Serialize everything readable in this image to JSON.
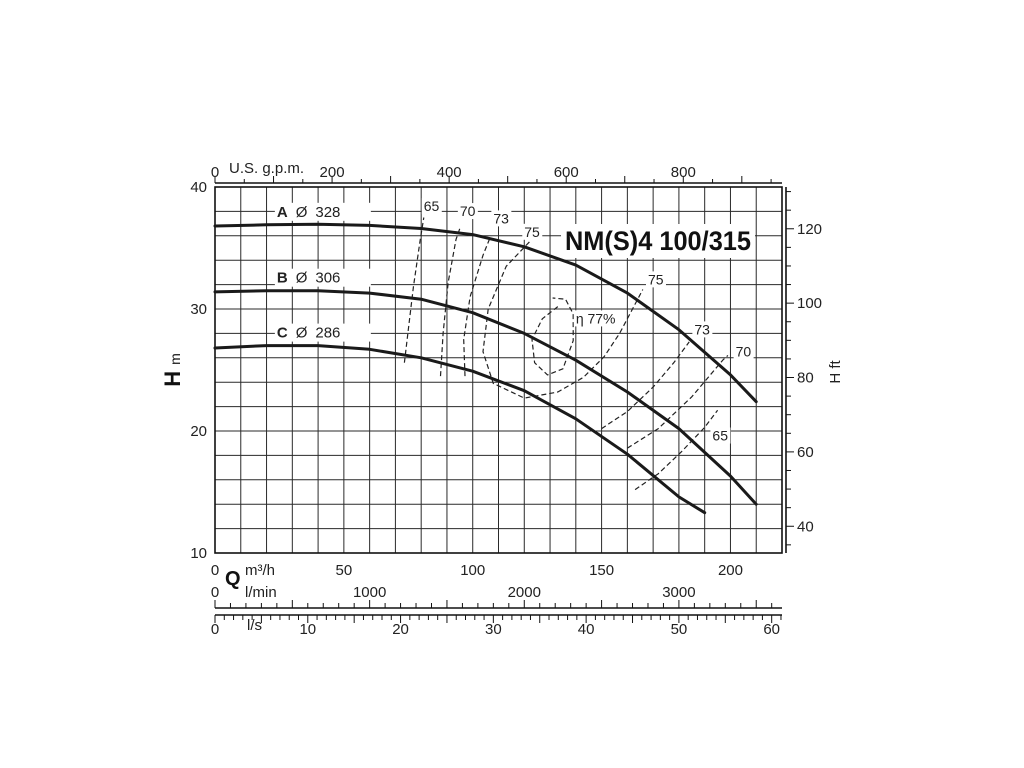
{
  "chart_data": {
    "type": "line",
    "title": "NM(S)4 100/315",
    "x_axis": {
      "symbol": "Q",
      "scales": [
        {
          "unit": "m³/h",
          "range": [
            0,
            220
          ],
          "ticks": [
            "0",
            "50",
            "100",
            "150",
            "200"
          ],
          "tick_values": [
            0,
            50,
            100,
            150,
            200
          ]
        },
        {
          "unit": "l/min",
          "range": [
            0,
            3666.7
          ],
          "ticks": [
            "0",
            "1000",
            "2000",
            "3000"
          ],
          "tick_values": [
            0,
            1000,
            2000,
            3000
          ]
        },
        {
          "unit": "l/s",
          "range": [
            0,
            61.1
          ],
          "ticks": [
            "0",
            "10",
            "20",
            "30",
            "40",
            "50",
            "60"
          ],
          "tick_values": [
            0,
            10,
            20,
            30,
            40,
            50,
            60
          ]
        }
      ]
    },
    "x_axis_top": {
      "unit": "U.S. g.p.m.",
      "range": [
        0,
        968.6
      ],
      "ticks": [
        "0",
        "200",
        "400",
        "600",
        "800"
      ],
      "tick_values": [
        0,
        200,
        400,
        600,
        800
      ]
    },
    "y_axis_left": {
      "symbol": "H",
      "unit": "m",
      "range": [
        10,
        40
      ],
      "ticks": [
        "10",
        "20",
        "30",
        "40"
      ],
      "tick_values": [
        10,
        20,
        30,
        40
      ]
    },
    "y_axis_right": {
      "symbol": "H",
      "unit": "ft",
      "range": [
        32.8,
        131.2
      ],
      "ticks": [
        "40",
        "60",
        "80",
        "100",
        "120"
      ],
      "tick_values": [
        40,
        60,
        80,
        100,
        120
      ]
    },
    "grid": true,
    "series": [
      {
        "name": "A",
        "diameter_label": "Ø",
        "diameter": "328",
        "points": [
          [
            0,
            36.8
          ],
          [
            20,
            36.9
          ],
          [
            40,
            36.95
          ],
          [
            60,
            36.85
          ],
          [
            80,
            36.6
          ],
          [
            100,
            36.1
          ],
          [
            120,
            35.1
          ],
          [
            140,
            33.6
          ],
          [
            160,
            31.3
          ],
          [
            180,
            28.3
          ],
          [
            200,
            24.6
          ],
          [
            210,
            22.4
          ]
        ]
      },
      {
        "name": "B",
        "diameter_label": "Ø",
        "diameter": "306",
        "points": [
          [
            0,
            31.4
          ],
          [
            20,
            31.5
          ],
          [
            40,
            31.5
          ],
          [
            60,
            31.3
          ],
          [
            80,
            30.8
          ],
          [
            100,
            29.7
          ],
          [
            120,
            28.0
          ],
          [
            140,
            25.8
          ],
          [
            160,
            23.2
          ],
          [
            180,
            20.2
          ],
          [
            200,
            16.3
          ],
          [
            210,
            14.0
          ]
        ]
      },
      {
        "name": "C",
        "diameter_label": "Ø",
        "diameter": "286",
        "points": [
          [
            0,
            26.8
          ],
          [
            20,
            27.0
          ],
          [
            40,
            27.0
          ],
          [
            60,
            26.7
          ],
          [
            80,
            26.0
          ],
          [
            100,
            24.9
          ],
          [
            120,
            23.3
          ],
          [
            140,
            21.0
          ],
          [
            160,
            18.1
          ],
          [
            180,
            14.6
          ],
          [
            190,
            13.3
          ]
        ]
      }
    ],
    "efficiency_contours": [
      {
        "label": "65",
        "segments": [
          [
            [
              73.5,
              25.6
            ],
            [
              75,
              28.3
            ],
            [
              77,
              31.8
            ],
            [
              79.5,
              35.5
            ],
            [
              81,
              37.5
            ]
          ],
          [
            [
              163,
              15.2
            ],
            [
              172,
              16.5
            ],
            [
              181,
              18.3
            ],
            [
              190,
              20.3
            ],
            [
              195,
              21.7
            ]
          ]
        ],
        "label_at": [
          [
            81,
            38.1
          ],
          [
            193,
            19.3
          ]
        ]
      },
      {
        "label": "70",
        "segments": [
          [
            [
              87.5,
              24.5
            ],
            [
              88.5,
              28.0
            ],
            [
              90.5,
              32.2
            ],
            [
              93.5,
              35.7
            ],
            [
              95,
              36.6
            ]
          ],
          [
            [
              160,
              18.6
            ],
            [
              172,
              20.2
            ],
            [
              185,
              22.8
            ],
            [
              197,
              25.8
            ],
            [
              199,
              26.2
            ]
          ]
        ],
        "label_at": [
          [
            95,
            37.7
          ],
          [
            202,
            26.2
          ]
        ]
      },
      {
        "label": "73",
        "segments": [
          [
            [
              97,
              24.5
            ],
            [
              96.5,
              27.5
            ],
            [
              99,
              31.0
            ],
            [
              104,
              34.4
            ],
            [
              107,
              36.0
            ]
          ],
          [
            [
              150,
              20.2
            ],
            [
              160,
              21.6
            ],
            [
              170,
              23.6
            ],
            [
              178,
              25.6
            ],
            [
              184,
              27.3
            ]
          ]
        ],
        "label_at": [
          [
            108,
            37.1
          ],
          [
            186,
            28.0
          ]
        ]
      },
      {
        "label": "75",
        "segments": [
          [
            [
              122,
              35.5
            ],
            [
              113,
              33.5
            ],
            [
              106,
              30.0
            ],
            [
              104,
              26.5
            ],
            [
              108,
              23.9
            ],
            [
              120,
              22.7
            ],
            [
              133,
              23.2
            ],
            [
              143,
              24.4
            ],
            [
              151,
              26.1
            ],
            [
              157,
              28.0
            ],
            [
              162,
              30.0
            ],
            [
              166,
              31.6
            ]
          ]
        ],
        "label_at": [
          [
            120,
            36.0
          ],
          [
            168,
            32.1
          ]
        ]
      },
      {
        "label": "η 77%",
        "segments": [
          [
            [
              133,
              30.2
            ],
            [
              127,
              29.2
            ],
            [
              123,
              27.5
            ],
            [
              124,
              25.6
            ],
            [
              129,
              24.6
            ],
            [
              135,
              25.1
            ],
            [
              139,
              27.4
            ],
            [
              139,
              29.6
            ],
            [
              136,
              30.8
            ],
            [
              131,
              30.9
            ]
          ]
        ],
        "label_at": [
          [
            140,
            28.9
          ]
        ]
      }
    ]
  },
  "labels": {
    "title": "NM(S)4 100/315",
    "h_symbol_left": "H",
    "h_unit_left": "m",
    "h_right": "H ft",
    "q_symbol": "Q",
    "unit_m3h": "m³/h",
    "unit_lmin": "l/min",
    "unit_ls": "l/s",
    "unit_gpm": "U.S. g.p.m.",
    "phi": "Ø"
  },
  "colors": {
    "curve": "#1a1a1a",
    "grid": "#2a2a2a",
    "text": "#222222",
    "background": "#ffffff"
  }
}
